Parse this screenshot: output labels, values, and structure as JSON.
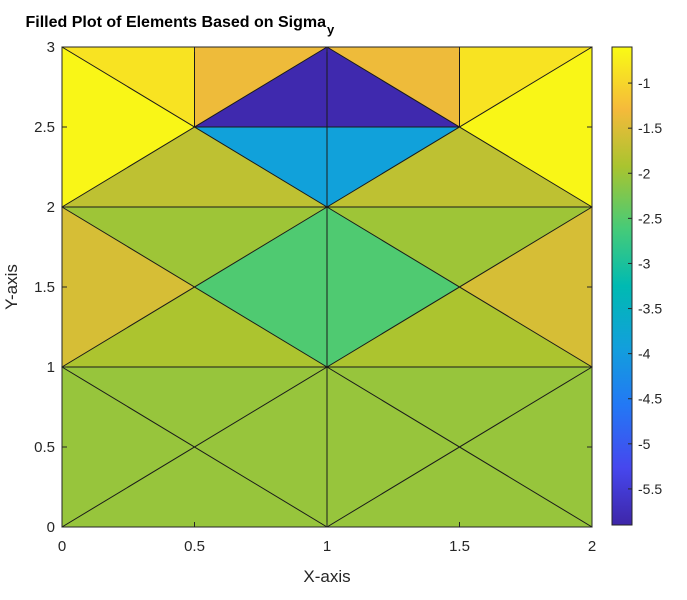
{
  "chart_data": {
    "type": "heatmap",
    "title": "Filled Plot of Elements Based on Sigma",
    "title_subscript": "y",
    "xlabel": "X-axis",
    "ylabel": "Y-axis",
    "xlim": [
      0,
      2
    ],
    "ylim": [
      0,
      3
    ],
    "x_ticks": [
      "0",
      "0.5",
      "1",
      "1.5",
      "2"
    ],
    "y_ticks": [
      "0",
      "0.5",
      "1",
      "1.5",
      "2",
      "2.5",
      "3"
    ],
    "grid": false,
    "colormap": "parula",
    "colorbar": {
      "position": "right",
      "range": [
        -5.9,
        -0.6
      ],
      "tick_values": [
        -1,
        -1.5,
        -2,
        -2.5,
        -3,
        -3.5,
        -4,
        -4.5,
        -5,
        -5.5
      ],
      "tick_labels": [
        "-1",
        "-1.5",
        "-2",
        "-2.5",
        "-3",
        "-3.5",
        "-4",
        "-4.5",
        "-5",
        "-5.5"
      ]
    },
    "elements": [
      {
        "vertices": [
          [
            0,
            0
          ],
          [
            1,
            0
          ],
          [
            0.5,
            0.5
          ]
        ],
        "value": -2.05
      },
      {
        "vertices": [
          [
            1,
            0
          ],
          [
            1,
            1
          ],
          [
            0.5,
            0.5
          ]
        ],
        "value": -2.05
      },
      {
        "vertices": [
          [
            1,
            1
          ],
          [
            0,
            1
          ],
          [
            0.5,
            0.5
          ]
        ],
        "value": -2.05
      },
      {
        "vertices": [
          [
            0,
            1
          ],
          [
            0,
            0
          ],
          [
            0.5,
            0.5
          ]
        ],
        "value": -2.05
      },
      {
        "vertices": [
          [
            1,
            0
          ],
          [
            2,
            0
          ],
          [
            1.5,
            0.5
          ]
        ],
        "value": -2.05
      },
      {
        "vertices": [
          [
            2,
            0
          ],
          [
            2,
            1
          ],
          [
            1.5,
            0.5
          ]
        ],
        "value": -2.05
      },
      {
        "vertices": [
          [
            2,
            1
          ],
          [
            1,
            1
          ],
          [
            1.5,
            0.5
          ]
        ],
        "value": -2.05
      },
      {
        "vertices": [
          [
            1,
            1
          ],
          [
            1,
            0
          ],
          [
            1.5,
            0.5
          ]
        ],
        "value": -2.05
      },
      {
        "vertices": [
          [
            0,
            1
          ],
          [
            1,
            1
          ],
          [
            0.5,
            1.5
          ]
        ],
        "value": -1.9
      },
      {
        "vertices": [
          [
            1,
            1
          ],
          [
            1,
            2
          ],
          [
            0.5,
            1.5
          ]
        ],
        "value": -2.55
      },
      {
        "vertices": [
          [
            1,
            2
          ],
          [
            0,
            2
          ],
          [
            0.5,
            1.5
          ]
        ],
        "value": -2.0
      },
      {
        "vertices": [
          [
            0,
            2
          ],
          [
            0,
            1
          ],
          [
            0.5,
            1.5
          ]
        ],
        "value": -1.55
      },
      {
        "vertices": [
          [
            1,
            1
          ],
          [
            2,
            1
          ],
          [
            1.5,
            1.5
          ]
        ],
        "value": -1.9
      },
      {
        "vertices": [
          [
            2,
            1
          ],
          [
            2,
            2
          ],
          [
            1.5,
            1.5
          ]
        ],
        "value": -1.55
      },
      {
        "vertices": [
          [
            2,
            2
          ],
          [
            1,
            2
          ],
          [
            1.5,
            1.5
          ]
        ],
        "value": -2.0
      },
      {
        "vertices": [
          [
            1,
            2
          ],
          [
            1,
            1
          ],
          [
            1.5,
            1.5
          ]
        ],
        "value": -2.55
      },
      {
        "vertices": [
          [
            0,
            2
          ],
          [
            1,
            2
          ],
          [
            0.5,
            2.5
          ]
        ],
        "value": -1.75
      },
      {
        "vertices": [
          [
            1,
            2
          ],
          [
            1,
            2.5
          ],
          [
            0.5,
            2.5
          ]
        ],
        "value": -3.9
      },
      {
        "vertices": [
          [
            0,
            3
          ],
          [
            0,
            2
          ],
          [
            0.5,
            2.5
          ]
        ],
        "value": -0.65
      },
      {
        "vertices": [
          [
            0,
            3
          ],
          [
            0.5,
            2.5
          ],
          [
            0.5,
            3
          ]
        ],
        "value": -0.85
      },
      {
        "vertices": [
          [
            0.5,
            3
          ],
          [
            0.5,
            2.5
          ],
          [
            1,
            3
          ]
        ],
        "value": -1.35
      },
      {
        "vertices": [
          [
            0.5,
            2.5
          ],
          [
            1,
            2.5
          ],
          [
            1,
            3
          ]
        ],
        "value": -5.85
      },
      {
        "vertices": [
          [
            1,
            2
          ],
          [
            2,
            2
          ],
          [
            1.5,
            2.5
          ]
        ],
        "value": -1.75
      },
      {
        "vertices": [
          [
            1,
            2
          ],
          [
            1.5,
            2.5
          ],
          [
            1,
            2.5
          ]
        ],
        "value": -3.9
      },
      {
        "vertices": [
          [
            2,
            2
          ],
          [
            2,
            3
          ],
          [
            1.5,
            2.5
          ]
        ],
        "value": -0.65
      },
      {
        "vertices": [
          [
            2,
            3
          ],
          [
            1.5,
            3
          ],
          [
            1.5,
            2.5
          ]
        ],
        "value": -0.85
      },
      {
        "vertices": [
          [
            1.5,
            3
          ],
          [
            1,
            3
          ],
          [
            1.5,
            2.5
          ]
        ],
        "value": -1.35
      },
      {
        "vertices": [
          [
            1,
            3
          ],
          [
            1,
            2.5
          ],
          [
            1.5,
            2.5
          ]
        ],
        "value": -5.85
      }
    ],
    "mesh_lines": [
      [
        [
          0,
          0
        ],
        [
          2,
          0
        ]
      ],
      [
        [
          0,
          1
        ],
        [
          2,
          1
        ]
      ],
      [
        [
          0,
          2
        ],
        [
          2,
          2
        ]
      ],
      [
        [
          0,
          3
        ],
        [
          2,
          3
        ]
      ],
      [
        [
          0,
          0
        ],
        [
          0,
          3
        ]
      ],
      [
        [
          1,
          0
        ],
        [
          1,
          3
        ]
      ],
      [
        [
          2,
          0
        ],
        [
          2,
          3
        ]
      ],
      [
        [
          0.5,
          2.5
        ],
        [
          0.5,
          3
        ]
      ],
      [
        [
          1.5,
          2.5
        ],
        [
          1.5,
          3
        ]
      ],
      [
        [
          0.5,
          2.5
        ],
        [
          1.5,
          2.5
        ]
      ],
      [
        [
          0,
          0
        ],
        [
          1,
          1
        ]
      ],
      [
        [
          1,
          0
        ],
        [
          0,
          1
        ]
      ],
      [
        [
          1,
          0
        ],
        [
          2,
          1
        ]
      ],
      [
        [
          2,
          0
        ],
        [
          1,
          1
        ]
      ],
      [
        [
          0,
          1
        ],
        [
          1,
          2
        ]
      ],
      [
        [
          1,
          1
        ],
        [
          0,
          2
        ]
      ],
      [
        [
          1,
          1
        ],
        [
          2,
          2
        ]
      ],
      [
        [
          2,
          1
        ],
        [
          1,
          2
        ]
      ],
      [
        [
          0,
          3
        ],
        [
          1,
          2
        ]
      ],
      [
        [
          0,
          2
        ],
        [
          1,
          3
        ]
      ],
      [
        [
          1,
          2
        ],
        [
          2,
          3
        ]
      ],
      [
        [
          1,
          3
        ],
        [
          2,
          2
        ]
      ]
    ]
  }
}
